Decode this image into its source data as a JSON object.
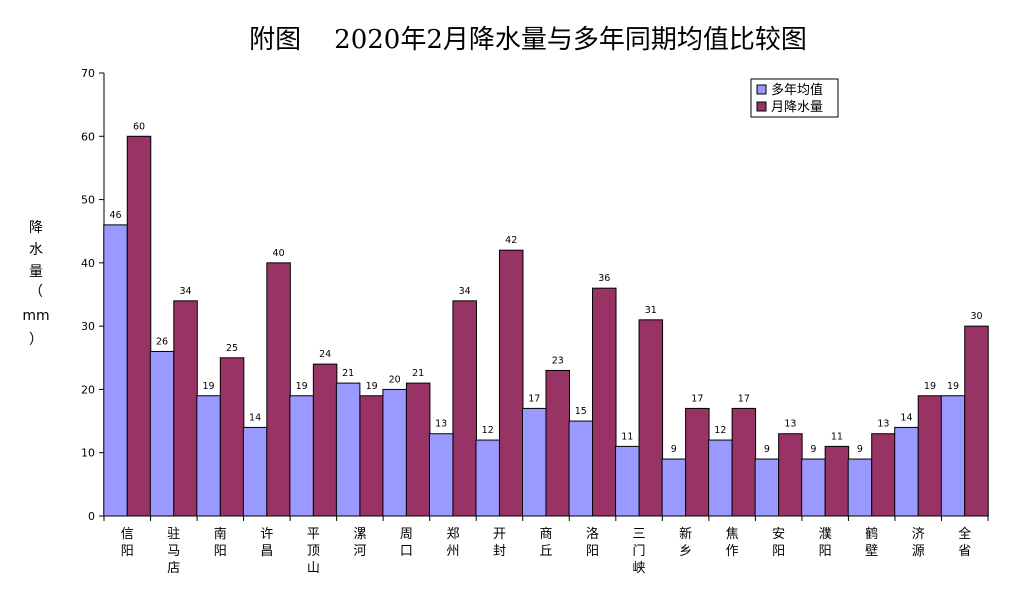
{
  "chart_data": {
    "type": "bar",
    "title": "附图    2020年2月降水量与多年同期均值比较图",
    "ylabel": "降水量（mm）",
    "xlabel": "",
    "ylim": [
      0,
      70
    ],
    "yticks": [
      0,
      10,
      20,
      30,
      40,
      50,
      60,
      70
    ],
    "grid": false,
    "legend_position": "top-right",
    "categories": [
      "信阳",
      "驻马店",
      "南阳",
      "许昌",
      "平顶山",
      "漯河",
      "周口",
      "郑州",
      "开封",
      "商丘",
      "洛阳",
      "三门峡",
      "新乡",
      "焦作",
      "安阳",
      "濮阳",
      "鹤壁",
      "济源",
      "全省"
    ],
    "series": [
      {
        "name": "多年均值",
        "color": "#9999ff",
        "values": [
          46,
          26,
          19,
          14,
          19,
          21,
          20,
          13,
          12,
          17,
          15,
          11,
          9,
          12,
          9,
          9,
          9,
          14,
          19
        ]
      },
      {
        "name": "月降水量",
        "color": "#993366",
        "values": [
          60,
          34,
          25,
          40,
          24,
          19,
          21,
          34,
          42,
          23,
          36,
          31,
          17,
          17,
          13,
          11,
          13,
          19,
          30
        ]
      }
    ]
  }
}
